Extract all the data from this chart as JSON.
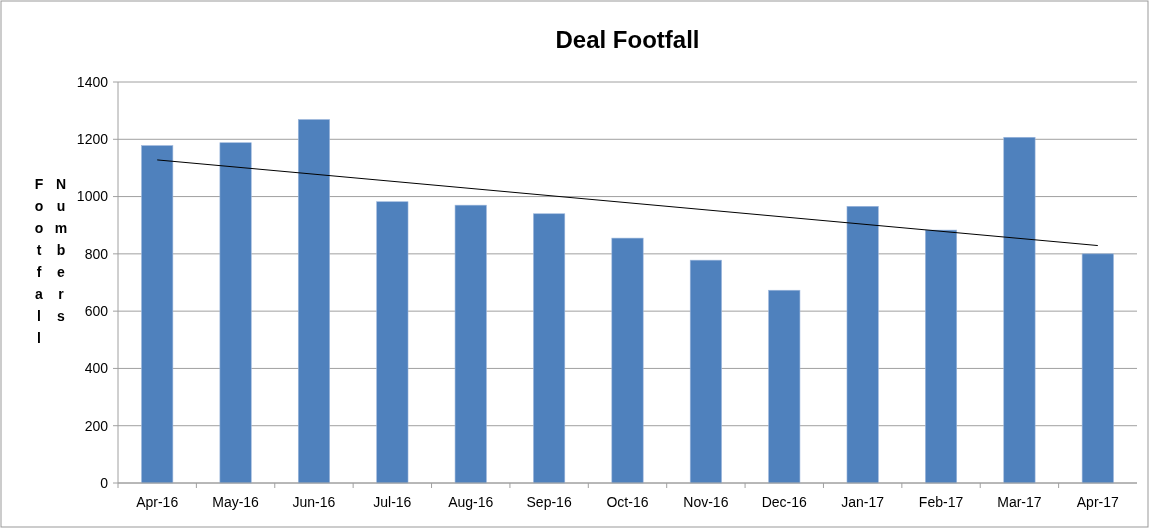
{
  "chart_data": {
    "type": "bar",
    "title": "Deal Footfall",
    "ylabel": "Footfall Numbers",
    "categories": [
      "Apr-16",
      "May-16",
      "Jun-16",
      "Jul-16",
      "Aug-16",
      "Sep-16",
      "Oct-16",
      "Nov-16",
      "Dec-16",
      "Jan-17",
      "Feb-17",
      "Mar-17",
      "Apr-17"
    ],
    "series": [
      {
        "color": "#4f81bd",
        "values": [
          1178,
          1188,
          1269,
          982,
          970,
          940,
          855,
          778,
          673,
          966,
          883,
          1207,
          800
        ]
      },
      {
        "type": "line",
        "color": "#000000",
        "x": [
          "Apr-16",
          "Apr-17"
        ],
        "values": [
          1128,
          829
        ]
      }
    ],
    "ylim": [
      0,
      1400
    ],
    "yticks": [
      0,
      200,
      400,
      600,
      800,
      1000,
      1200,
      1400
    ],
    "grid": "y"
  }
}
